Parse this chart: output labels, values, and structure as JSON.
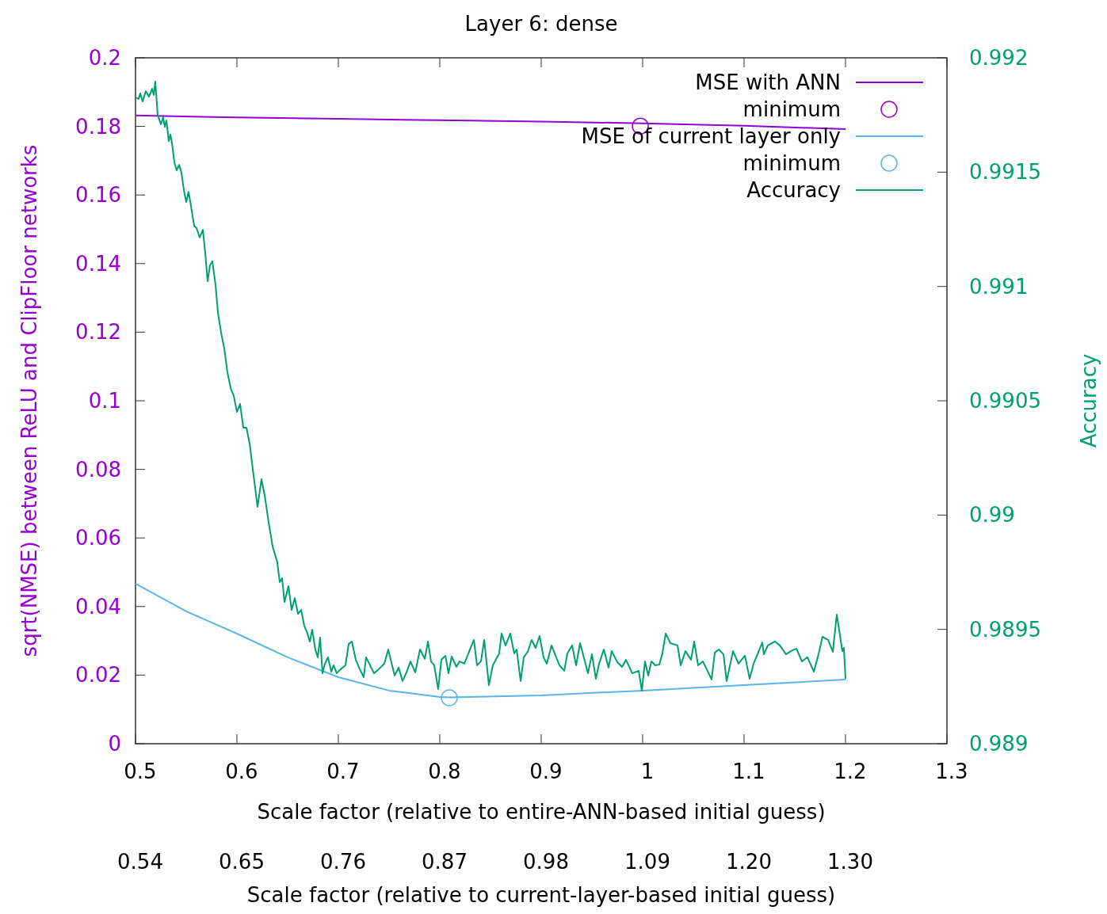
{
  "chart_data": {
    "type": "line",
    "title": "Layer 6: dense",
    "xlabel": "Scale factor (relative to entire-ANN-based initial guess)",
    "x2label": "Scale factor (relative to current-layer-based initial guess)",
    "ylabel": "sqrt(NMSE) between ReLU and ClipFloor networks",
    "y2label": "Accuracy",
    "xlim": [
      0.5,
      1.3
    ],
    "xticks": [
      0.5,
      0.6,
      0.7,
      0.8,
      0.9,
      1,
      1.1,
      1.2,
      1.3
    ],
    "x2lim": [
      0.5435,
      1.4131
    ],
    "x2ticks": [
      {
        "value": 0.5435,
        "label": "0.54"
      },
      {
        "value": 0.6522,
        "label": "0.65"
      },
      {
        "value": 0.7609,
        "label": "0.76"
      },
      {
        "value": 0.8696,
        "label": "0.87"
      },
      {
        "value": 0.9783,
        "label": "0.98"
      },
      {
        "value": 1.087,
        "label": "1.09"
      },
      {
        "value": 1.1957,
        "label": "1.20"
      },
      {
        "value": 1.3044,
        "label": "1.30"
      }
    ],
    "ylim": [
      0,
      0.2
    ],
    "yticks": [
      0,
      0.02,
      0.04,
      0.06,
      0.08,
      0.1,
      0.12,
      0.14,
      0.16,
      0.18,
      0.2
    ],
    "y2lim": [
      0.989,
      0.992
    ],
    "y2ticks": [
      0.989,
      0.9895,
      0.99,
      0.9905,
      0.991,
      0.9915,
      0.992
    ],
    "grid": false,
    "legend": "top right",
    "series": [
      {
        "name": "MSE with ANN",
        "color": "#9400d3",
        "x": [
          0.5,
          0.6,
          0.7,
          0.8,
          0.9,
          1,
          1.1,
          1.2
        ],
        "values": [
          0.1832,
          0.1826,
          0.1822,
          0.1818,
          0.1814,
          0.1809,
          0.1802,
          0.1792
        ]
      },
      {
        "name": "minimum",
        "type": "scatter",
        "marker": "circle",
        "color": "#9400d3",
        "x": [
          0.9977
        ],
        "values": [
          0.1801
        ]
      },
      {
        "name": "MSE of current layer only",
        "color": "#56b4e9",
        "x": [
          0.5,
          0.55,
          0.6,
          0.65,
          0.7,
          0.75,
          0.8,
          0.81,
          0.9,
          1,
          1.1,
          1.2
        ],
        "values": [
          0.0467,
          0.0386,
          0.0321,
          0.0252,
          0.0194,
          0.0155,
          0.0136,
          0.0135,
          0.0141,
          0.0155,
          0.0171,
          0.0187
        ]
      },
      {
        "name": "minimum",
        "type": "scatter",
        "marker": "circle",
        "color": "#56b4e9",
        "x": [
          0.8094
        ],
        "values": [
          0.0134
        ]
      },
      {
        "name": "Accuracy",
        "axis": "y2",
        "color": "#009e73",
        "x": [
          0.5,
          0.5031,
          0.5047,
          0.507,
          0.5102,
          0.5133,
          0.5164,
          0.518,
          0.5195,
          0.5219,
          0.525,
          0.5273,
          0.5289,
          0.5305,
          0.5328,
          0.5344,
          0.5359,
          0.5383,
          0.5406,
          0.543,
          0.5453,
          0.5477,
          0.55,
          0.5523,
          0.5547,
          0.5578,
          0.5602,
          0.5633,
          0.5664,
          0.5688,
          0.5711,
          0.5734,
          0.5758,
          0.5789,
          0.5813,
          0.5844,
          0.5875,
          0.5906,
          0.5938,
          0.5969,
          0.6,
          0.6031,
          0.6063,
          0.6094,
          0.6125,
          0.6164,
          0.6203,
          0.6242,
          0.6273,
          0.6313,
          0.6352,
          0.6375,
          0.6398,
          0.6422,
          0.6445,
          0.6469,
          0.6508,
          0.6539,
          0.657,
          0.6602,
          0.6633,
          0.6664,
          0.6695,
          0.6719,
          0.6742,
          0.6773,
          0.6797,
          0.682,
          0.6844,
          0.6867,
          0.6898,
          0.693,
          0.6953,
          0.6984,
          0.7023,
          0.707,
          0.7102,
          0.7133,
          0.7172,
          0.7211,
          0.725,
          0.7273,
          0.7313,
          0.7352,
          0.7398,
          0.7453,
          0.7492,
          0.7516,
          0.7555,
          0.7594,
          0.7633,
          0.7672,
          0.7711,
          0.7758,
          0.7805,
          0.7852,
          0.7883,
          0.7914,
          0.7945,
          0.7984,
          0.8016,
          0.8055,
          0.8086,
          0.8117,
          0.8164,
          0.8195,
          0.8242,
          0.8297,
          0.8336,
          0.8367,
          0.8406,
          0.8438,
          0.8484,
          0.8523,
          0.8586,
          0.8609,
          0.8648,
          0.8695,
          0.8734,
          0.8758,
          0.8797,
          0.8828,
          0.8867,
          0.8906,
          0.8945,
          0.8984,
          0.9023,
          0.9055,
          0.9102,
          0.9141,
          0.918,
          0.9227,
          0.9258,
          0.9305,
          0.9344,
          0.9383,
          0.9422,
          0.9461,
          0.95,
          0.9539,
          0.957,
          0.9617,
          0.9664,
          0.9695,
          0.975,
          0.9797,
          0.9836,
          0.9898,
          0.9961,
          0.9992,
          1.0023,
          1.0055,
          1.0086,
          1.0125,
          1.0164,
          1.0195,
          1.0227,
          1.0273,
          1.0344,
          1.0375,
          1.0422,
          1.0477,
          1.0508,
          1.0547,
          1.0594,
          1.068,
          1.0711,
          1.075,
          1.0797,
          1.0828,
          1.0891,
          1.0945,
          1.1008,
          1.1055,
          1.1094,
          1.118,
          1.1195,
          1.1234,
          1.1305,
          1.1352,
          1.1414,
          1.1461,
          1.1516,
          1.157,
          1.1625,
          1.1688,
          1.1734,
          1.1773,
          1.1828,
          1.1875,
          1.1914,
          1.1969,
          1.1984,
          1.2
        ],
        "values": [
          0.991827,
          0.99182,
          0.991844,
          0.991809,
          0.991854,
          0.99183,
          0.991865,
          0.991837,
          0.991896,
          0.99175,
          0.991709,
          0.99174,
          0.991698,
          0.991726,
          0.991636,
          0.991664,
          0.991629,
          0.991543,
          0.991508,
          0.991532,
          0.991498,
          0.991421,
          0.991369,
          0.991414,
          0.991352,
          0.991265,
          0.991255,
          0.991214,
          0.991248,
          0.991144,
          0.991023,
          0.991092,
          0.99111,
          0.991006,
          0.990884,
          0.990798,
          0.990729,
          0.990625,
          0.990555,
          0.990521,
          0.990451,
          0.990486,
          0.990382,
          0.990382,
          0.990313,
          0.990174,
          0.990036,
          0.990157,
          0.990088,
          0.989966,
          0.989863,
          0.989828,
          0.989793,
          0.989707,
          0.989724,
          0.98962,
          0.989689,
          0.989585,
          0.989637,
          0.989568,
          0.989585,
          0.989516,
          0.989482,
          0.989447,
          0.989499,
          0.989412,
          0.989378,
          0.989464,
          0.989308,
          0.98935,
          0.989378,
          0.989315,
          0.989343,
          0.989308,
          0.989326,
          0.989343,
          0.989436,
          0.989447,
          0.989367,
          0.989326,
          0.989291,
          0.989378,
          0.989343,
          0.989308,
          0.989326,
          0.98935,
          0.989412,
          0.989367,
          0.989298,
          0.989333,
          0.989274,
          0.989312,
          0.98936,
          0.989312,
          0.989412,
          0.989371,
          0.989447,
          0.98936,
          0.989343,
          0.989239,
          0.989367,
          0.989385,
          0.989308,
          0.989381,
          0.989336,
          0.98936,
          0.98935,
          0.989412,
          0.989454,
          0.989343,
          0.98936,
          0.989454,
          0.989256,
          0.989343,
          0.989395,
          0.989482,
          0.98943,
          0.989482,
          0.989395,
          0.989412,
          0.989274,
          0.989378,
          0.989402,
          0.989454,
          0.989419,
          0.989471,
          0.989378,
          0.98935,
          0.98943,
          0.989385,
          0.989343,
          0.989319,
          0.989395,
          0.98943,
          0.989343,
          0.98944,
          0.989374,
          0.989308,
          0.989391,
          0.989284,
          0.98935,
          0.989412,
          0.989333,
          0.989405,
          0.989357,
          0.989336,
          0.989367,
          0.989308,
          0.989319,
          0.989232,
          0.98936,
          0.989298,
          0.98936,
          0.989343,
          0.989346,
          0.989395,
          0.989482,
          0.98944,
          0.98943,
          0.989343,
          0.989405,
          0.989367,
          0.989447,
          0.989343,
          0.98936,
          0.989281,
          0.989398,
          0.989412,
          0.989391,
          0.989274,
          0.989405,
          0.98935,
          0.989385,
          0.989284,
          0.98935,
          0.989443,
          0.989391,
          0.98943,
          0.989447,
          0.98943,
          0.989391,
          0.989405,
          0.989416,
          0.98936,
          0.989378,
          0.989315,
          0.989391,
          0.989468,
          0.989454,
          0.989402,
          0.989565,
          0.989405,
          0.989419,
          0.989284
        ]
      }
    ]
  }
}
